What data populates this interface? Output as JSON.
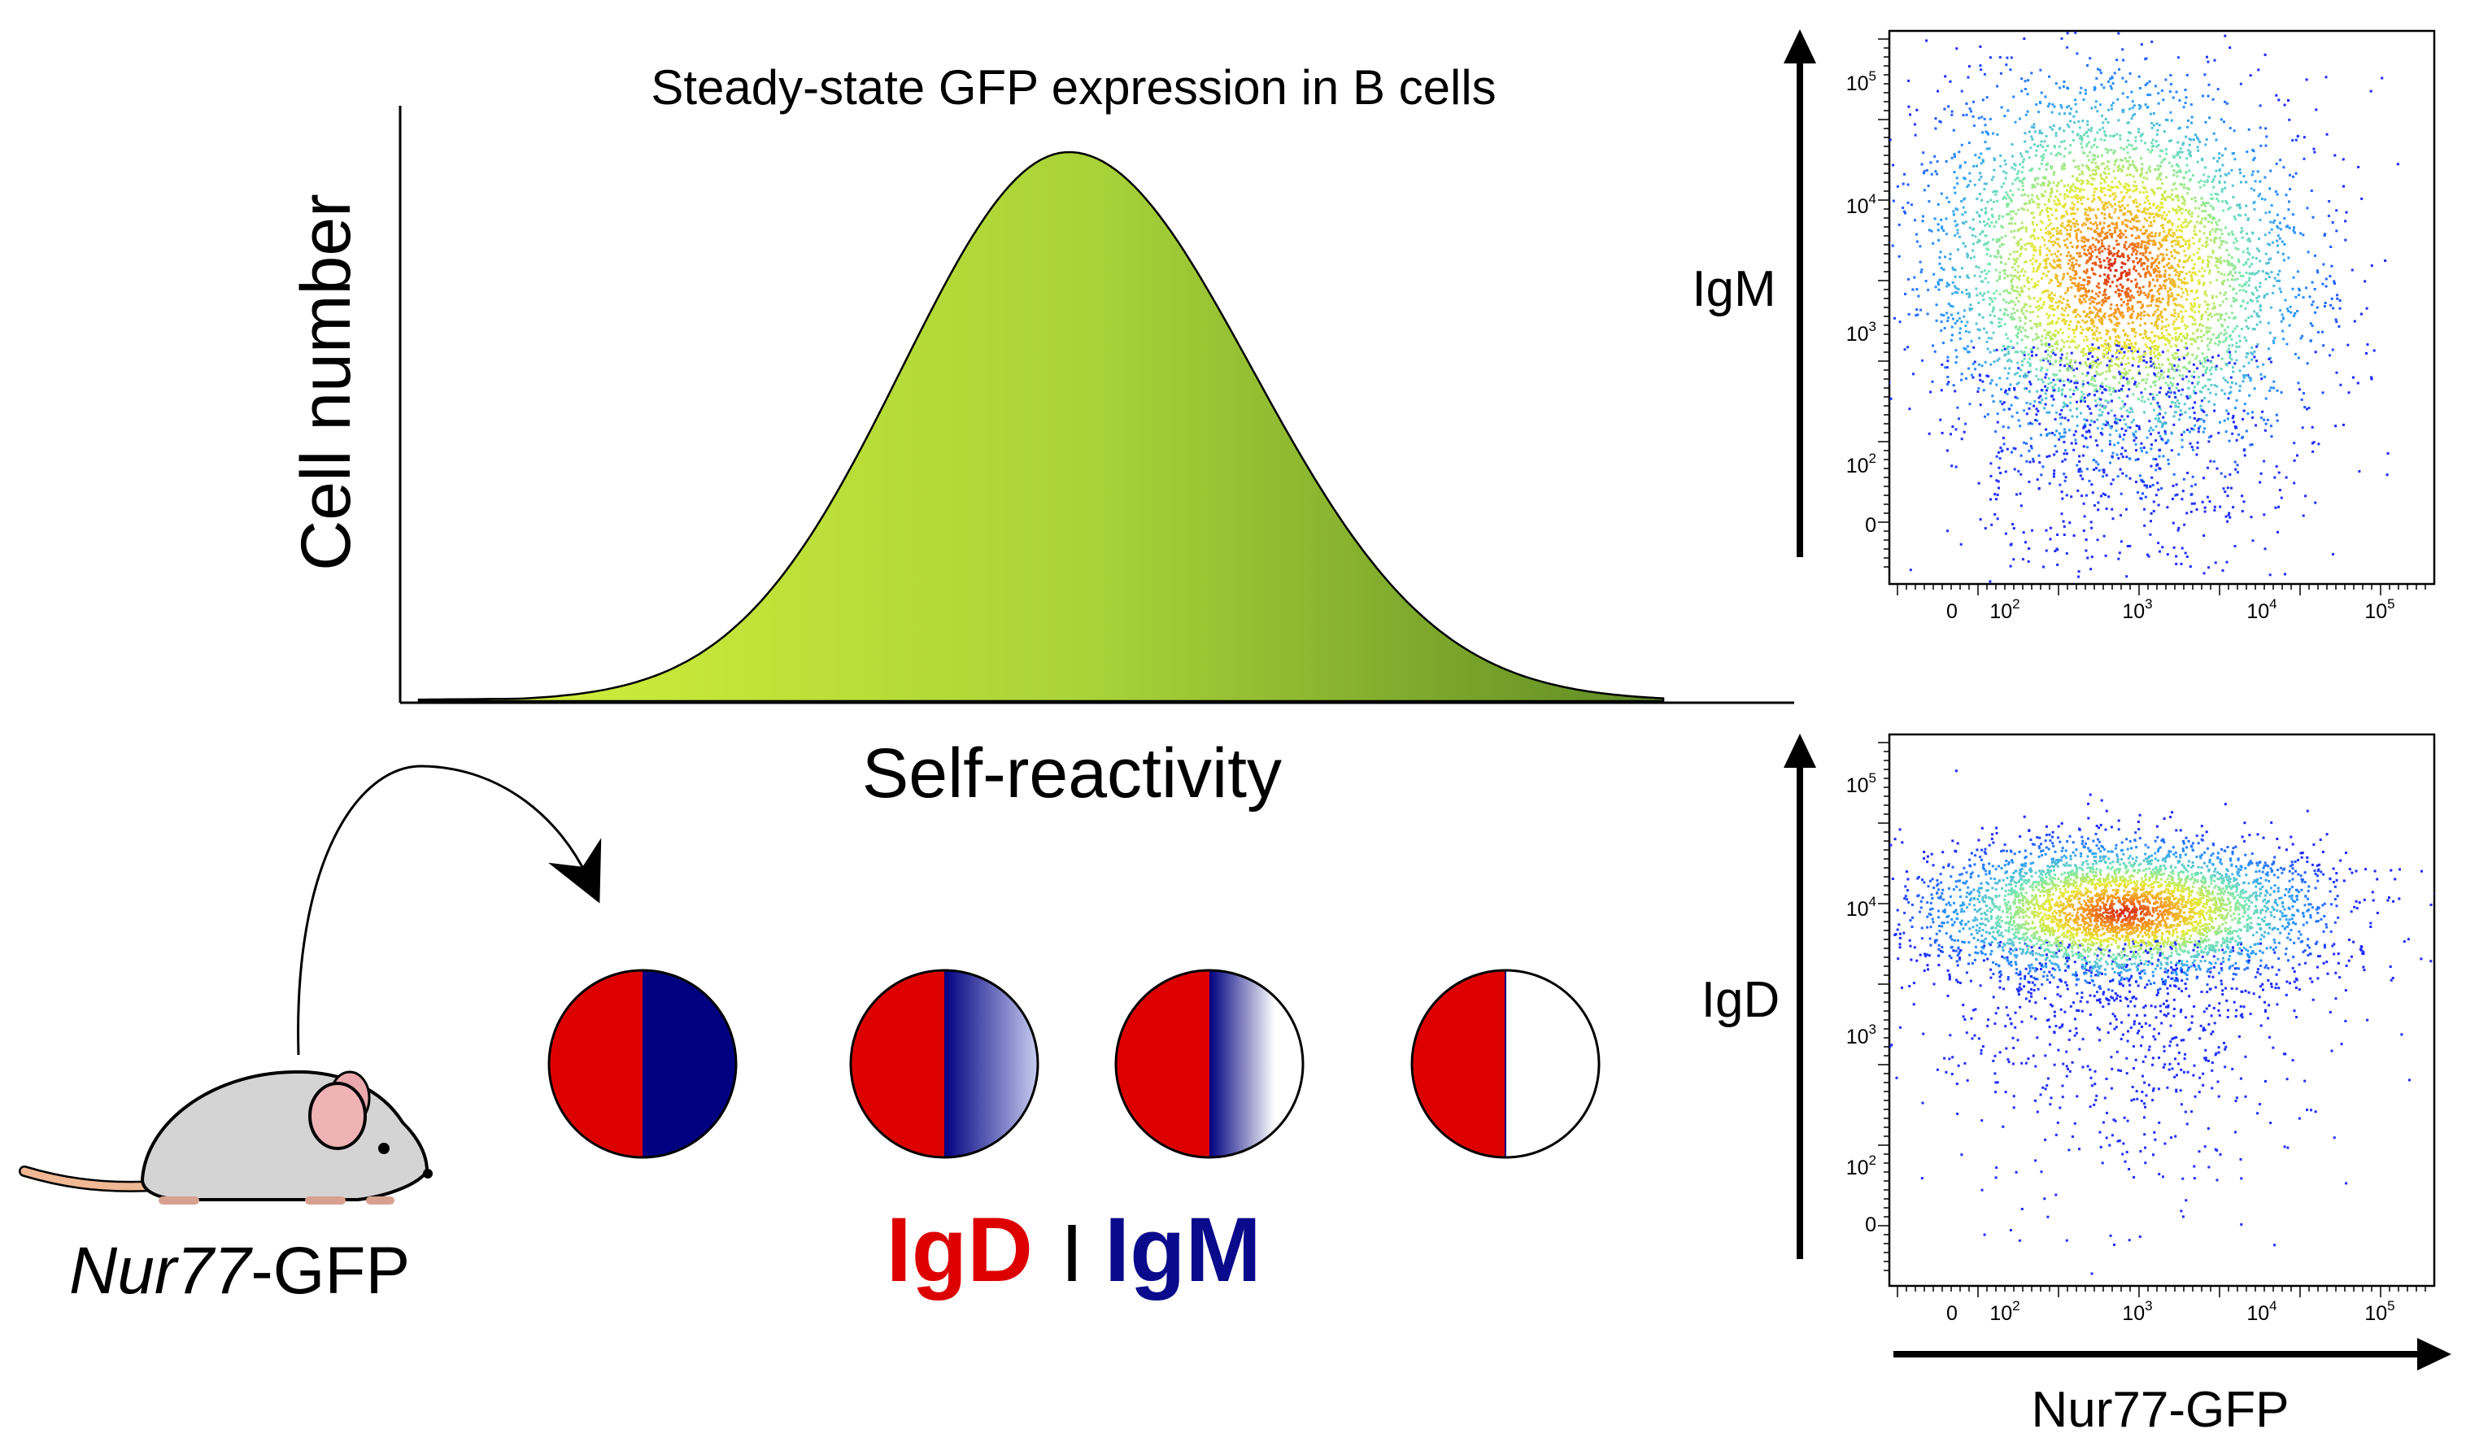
{
  "histogram": {
    "title": "Steady-state GFP expression in B cells",
    "ylabel": "Cell number",
    "xlabel": "Self-reactivity",
    "fill_gradient": [
      "#d8f23a",
      "#a8d238",
      "#5e8a23"
    ]
  },
  "mouse": {
    "label_italic": "Nur77",
    "label_rest": "-GFP"
  },
  "cells": {
    "left_color": "#dd0000",
    "right_color": "#000080",
    "igm_levels": [
      1.0,
      0.66,
      0.33,
      0.0
    ]
  },
  "legend": {
    "igd": "IgD",
    "separator": "I",
    "igm": "IgM",
    "igd_color": "#dd0000",
    "igm_color": "#0a0a8c"
  },
  "facs_top": {
    "ylabel": "IgM",
    "y_ticks": [
      {
        "base": "10",
        "exp": "5"
      },
      {
        "base": "10",
        "exp": "4"
      },
      {
        "base": "10",
        "exp": "3"
      },
      {
        "base": "10",
        "exp": "2"
      },
      {
        "base": "0",
        "exp": ""
      }
    ],
    "x_ticks": [
      {
        "base": "0",
        "exp": ""
      },
      {
        "base": "10",
        "exp": "2"
      },
      {
        "base": "10",
        "exp": "3"
      },
      {
        "base": "10",
        "exp": "4"
      },
      {
        "base": "10",
        "exp": "5"
      }
    ]
  },
  "facs_bottom": {
    "ylabel": "IgD",
    "xlabel": "Nur77-GFP",
    "y_ticks": [
      {
        "base": "10",
        "exp": "5"
      },
      {
        "base": "10",
        "exp": "4"
      },
      {
        "base": "10",
        "exp": "3"
      },
      {
        "base": "10",
        "exp": "2"
      },
      {
        "base": "0",
        "exp": ""
      }
    ],
    "x_ticks": [
      {
        "base": "0",
        "exp": ""
      },
      {
        "base": "10",
        "exp": "2"
      },
      {
        "base": "10",
        "exp": "3"
      },
      {
        "base": "10",
        "exp": "4"
      },
      {
        "base": "10",
        "exp": "5"
      }
    ]
  }
}
